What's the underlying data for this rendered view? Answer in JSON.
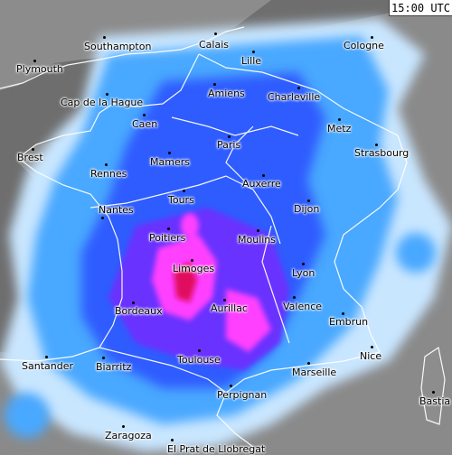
{
  "timestamp": "15:00 UTC",
  "colors": {
    "land": "#8a8a8a",
    "sea": "#6f6f6f",
    "light_rain": "#c8e6ff",
    "rain": "#3fa0ff",
    "moderate": "#2a55ff",
    "heavy": "#6a2cff",
    "very_heavy": "#ff3cff",
    "intense": "#e01060",
    "borders": "#ffffff"
  },
  "cities": [
    {
      "name": "Southampton"
    },
    {
      "name": "Calais"
    },
    {
      "name": "Cologne"
    },
    {
      "name": "Plymouth"
    },
    {
      "name": "Lille"
    },
    {
      "name": "Cap de la Hague"
    },
    {
      "name": "Amiens"
    },
    {
      "name": "Charleville"
    },
    {
      "name": "Caen"
    },
    {
      "name": "Metz"
    },
    {
      "name": "Paris"
    },
    {
      "name": "Brest"
    },
    {
      "name": "Strasbourg"
    },
    {
      "name": "Mamers"
    },
    {
      "name": "Rennes"
    },
    {
      "name": "Auxerre"
    },
    {
      "name": "Tours"
    },
    {
      "name": "Dijon"
    },
    {
      "name": "Nantes"
    },
    {
      "name": "Poitiers"
    },
    {
      "name": "Moulins"
    },
    {
      "name": "Limoges"
    },
    {
      "name": "Lyon"
    },
    {
      "name": "Bordeaux"
    },
    {
      "name": "Aurillac"
    },
    {
      "name": "Valence"
    },
    {
      "name": "Embrun"
    },
    {
      "name": "Nice"
    },
    {
      "name": "Santander"
    },
    {
      "name": "Biarritz"
    },
    {
      "name": "Toulouse"
    },
    {
      "name": "Marseille"
    },
    {
      "name": "Perpignan"
    },
    {
      "name": "Bastia"
    },
    {
      "name": "Zaragoza"
    },
    {
      "name": "El Prat de Llobregat"
    }
  ]
}
